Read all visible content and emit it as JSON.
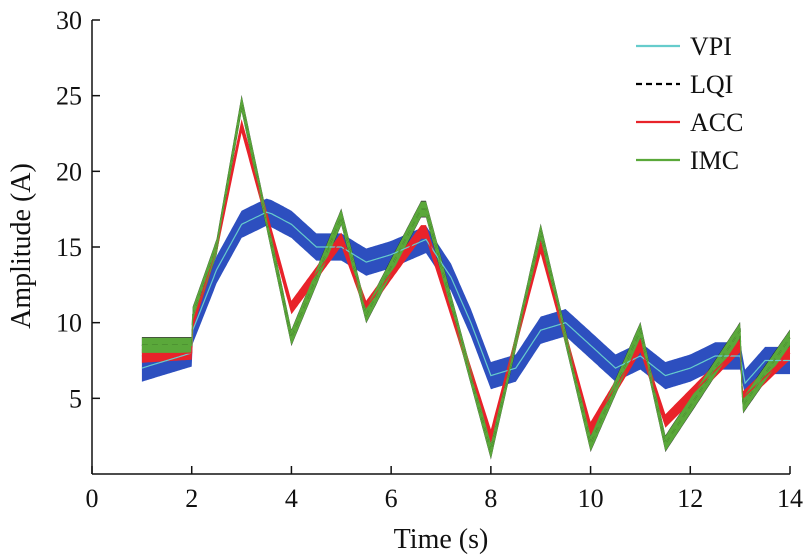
{
  "chart_data": {
    "type": "line",
    "title": "",
    "xlabel": "Time (s)",
    "ylabel": "Amplitude (A)",
    "xlim": [
      0,
      14
    ],
    "ylim": [
      0,
      30
    ],
    "xticks": [
      "0",
      "2",
      "4",
      "6",
      "8",
      "10",
      "12",
      "14"
    ],
    "yticks": [
      "5",
      "10",
      "15",
      "20",
      "25",
      "30"
    ],
    "grid": false,
    "legend_position": "top-right",
    "series": [
      {
        "name": "VPI",
        "color": "#66cccc",
        "dash": "solid",
        "x": [
          1.0,
          2.0,
          2.02,
          2.5,
          3.0,
          3.5,
          3.6,
          4.0,
          4.5,
          5.0,
          5.5,
          6.0,
          6.7,
          7.2,
          7.6,
          8.0,
          8.5,
          9.0,
          9.5,
          10.0,
          10.5,
          11.0,
          11.5,
          12.0,
          12.5,
          13.0,
          13.1,
          13.5,
          14.0
        ],
        "y": [
          7.0,
          8.0,
          9.5,
          13.5,
          16.5,
          17.3,
          17.2,
          16.5,
          15.0,
          15.0,
          14.0,
          14.5,
          15.5,
          13.0,
          10.0,
          6.5,
          7.0,
          9.5,
          10.0,
          8.5,
          7.0,
          7.8,
          6.5,
          7.0,
          7.8,
          7.8,
          6.0,
          7.5,
          7.5
        ]
      },
      {
        "name": "LQI",
        "color": "#000000",
        "dash": "dashed",
        "x": [
          1.0,
          2.0,
          2.02,
          2.5,
          3.0,
          4.0,
          5.0,
          5.5,
          6.6,
          6.7,
          8.0,
          9.0,
          10.0,
          11.0,
          11.5,
          13.0,
          13.05,
          14.0
        ],
        "y": [
          8.5,
          8.5,
          10.5,
          15.0,
          24.5,
          9.0,
          17.0,
          10.5,
          17.5,
          17.5,
          1.5,
          16.0,
          2.0,
          9.5,
          2.0,
          9.5,
          4.5,
          9.0
        ]
      },
      {
        "name": "ACC",
        "color": "#e8232a",
        "dash": "solid",
        "x": [
          1.0,
          2.0,
          2.02,
          2.5,
          3.0,
          4.0,
          5.0,
          5.5,
          6.6,
          6.7,
          8.0,
          9.0,
          10.0,
          11.0,
          11.5,
          13.0,
          13.05,
          14.0
        ],
        "y": [
          7.8,
          8.0,
          10.0,
          15.0,
          23.0,
          11.0,
          15.5,
          11.0,
          16.0,
          16.0,
          2.5,
          15.0,
          3.0,
          8.5,
          3.5,
          8.5,
          5.0,
          8.0
        ]
      },
      {
        "name": "IMC",
        "color": "#5aa83a",
        "dash": "solid",
        "x": [
          1.0,
          2.0,
          2.02,
          2.5,
          3.0,
          4.0,
          5.0,
          5.5,
          6.6,
          6.7,
          8.0,
          9.0,
          10.0,
          11.0,
          11.5,
          13.0,
          13.05,
          14.0
        ],
        "y": [
          8.5,
          8.5,
          10.5,
          15.0,
          24.5,
          9.0,
          17.0,
          10.5,
          17.5,
          17.5,
          1.5,
          16.0,
          2.0,
          9.5,
          2.0,
          9.5,
          4.5,
          9.0
        ]
      }
    ]
  }
}
